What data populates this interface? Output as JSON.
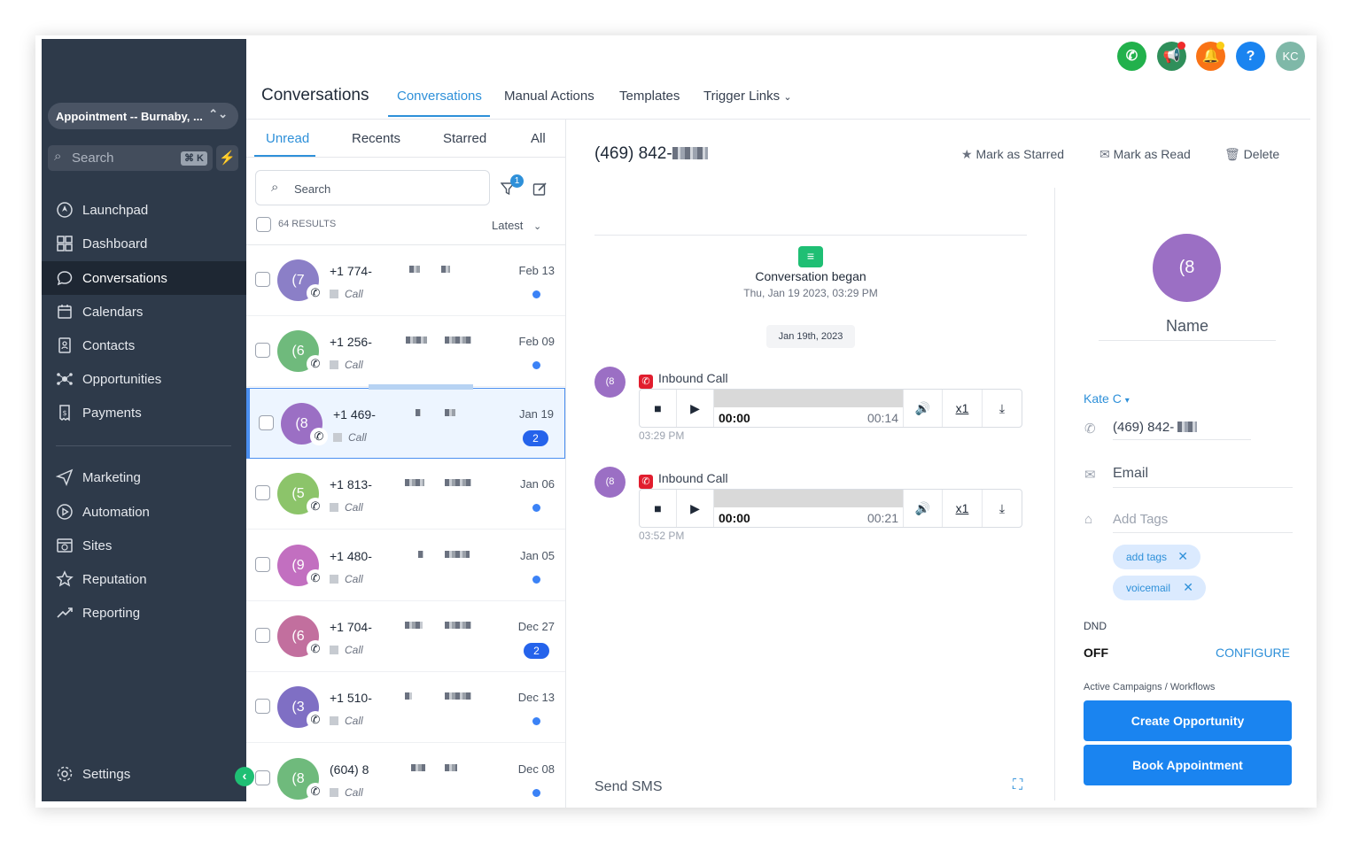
{
  "sidebar": {
    "location": "Appointment -- Burnaby, ...",
    "search_placeholder": "Search",
    "search_shortcut": "⌘ K",
    "items": [
      {
        "label": "Launchpad"
      },
      {
        "label": "Dashboard"
      },
      {
        "label": "Conversations"
      },
      {
        "label": "Calendars"
      },
      {
        "label": "Contacts"
      },
      {
        "label": "Opportunities"
      },
      {
        "label": "Payments"
      },
      {
        "label": "Marketing"
      },
      {
        "label": "Automation"
      },
      {
        "label": "Sites"
      },
      {
        "label": "Reputation"
      },
      {
        "label": "Reporting"
      }
    ],
    "settings": "Settings",
    "active_item": "Conversations"
  },
  "header": {
    "title": "Conversations",
    "tabs": [
      "Conversations",
      "Manual Actions",
      "Templates",
      "Trigger Links"
    ],
    "active_tab": "Conversations",
    "user_initials": "KC",
    "help_label": "?"
  },
  "list": {
    "filter_tabs": [
      "Unread",
      "Recents",
      "Starred",
      "All"
    ],
    "active_filter": "Unread",
    "search_placeholder": "Search",
    "filter_badge": "1",
    "results": "64 RESULTS",
    "sort": "Latest",
    "rows": [
      {
        "initial": "(7",
        "number": "+1 774-",
        "type": "Call",
        "date": "Feb 13",
        "unread": "",
        "color": "#8b7fc7"
      },
      {
        "initial": "(6",
        "number": "+1 256-",
        "type": "Call",
        "date": "Feb 09",
        "unread": "",
        "color": "#6fba7c"
      },
      {
        "initial": "(8",
        "number": "+1 469-",
        "type": "Call",
        "date": "Jan 19",
        "unread": "2",
        "color": "#9b6fc4"
      },
      {
        "initial": "(5",
        "number": "+1 813-",
        "type": "Call",
        "date": "Jan 06",
        "unread": "",
        "color": "#8cc46a"
      },
      {
        "initial": "(9",
        "number": "+1 480-",
        "type": "Call",
        "date": "Jan 05",
        "unread": "",
        "color": "#c26fc0"
      },
      {
        "initial": "(6",
        "number": "+1 704-",
        "type": "Call",
        "date": "Dec 27",
        "unread": "2",
        "color": "#c26f9e"
      },
      {
        "initial": "(3",
        "number": "+1 510-",
        "type": "Call",
        "date": "Dec 13",
        "unread": "",
        "color": "#7f6fc4"
      },
      {
        "initial": "(8",
        "number": "(604) 8",
        "type": "Call",
        "date": "Dec 08",
        "unread": "",
        "color": "#6fba7c"
      }
    ]
  },
  "conversation": {
    "phone": "(469) 842-",
    "actions": [
      "Mark as Starred",
      "Mark as Read",
      "Delete"
    ],
    "began_title": "Conversation began",
    "began_date": "Thu, Jan 19 2023, 03:29 PM",
    "date_chip": "Jan 19th, 2023",
    "messages": [
      {
        "avatar": "(8",
        "label": "Inbound Call",
        "current": "00:00",
        "duration": "00:14",
        "speed": "x1",
        "time": "03:29 PM"
      },
      {
        "avatar": "(8",
        "label": "Inbound Call",
        "current": "00:00",
        "duration": "00:21",
        "speed": "x1",
        "time": "03:52 PM"
      }
    ],
    "send_sms": "Send SMS"
  },
  "contact": {
    "avatar": "(8",
    "name": "Name",
    "owner": "Kate C",
    "phone": "(469) 842-",
    "email_placeholder": "Email",
    "tags_placeholder": "Add Tags",
    "tags": [
      "add tags",
      "voicemail"
    ],
    "dnd_label": "DND",
    "dnd_value": "OFF",
    "configure": "CONFIGURE",
    "campaigns_label": "Active Campaigns / Workflows",
    "create_opportunity": "Create Opportunity",
    "book_appointment": "Book Appointment"
  }
}
